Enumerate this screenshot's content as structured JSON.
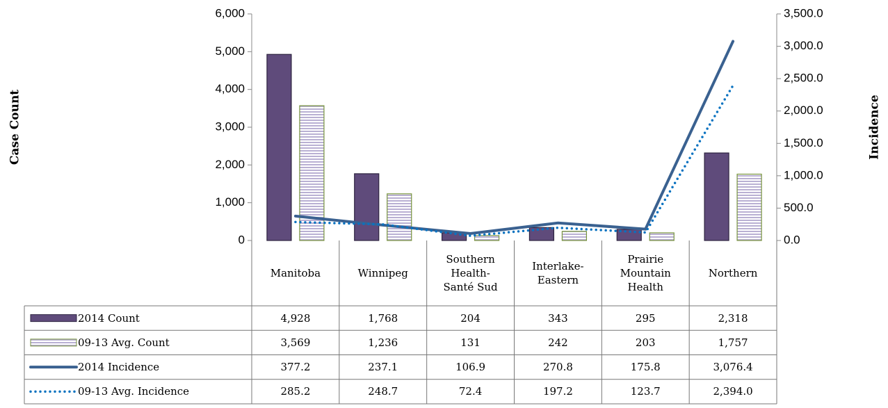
{
  "chart_data": {
    "type": "bar",
    "ylabel": "Case Count",
    "y2label": "Incidence",
    "categories": [
      "Manitoba",
      "Winnipeg",
      "Southern Health-Santé Sud",
      "Interlake-Eastern",
      "Prairie Mountain Health",
      "Northern"
    ],
    "ylim": [
      0,
      6000
    ],
    "yticks": [
      0,
      {
        "value": 1000,
        "label": "1,000"
      },
      {
        "value": 2000,
        "label": "2,000"
      },
      {
        "value": 3000,
        "label": "3,000"
      },
      {
        "value": 4000,
        "label": "4,000"
      },
      {
        "value": 5000,
        "label": "5,000"
      },
      {
        "value": 6000,
        "label": "6,000"
      }
    ],
    "y2lim": [
      0,
      3500
    ],
    "y2ticks": [
      {
        "value": 0,
        "label": "0.0"
      },
      {
        "value": 500,
        "label": "500.0"
      },
      {
        "value": 1000,
        "label": "1,000.0"
      },
      {
        "value": 1500,
        "label": "1,500.0"
      },
      {
        "value": 2000,
        "label": "2,000.0"
      },
      {
        "value": 2500,
        "label": "2,500.0"
      },
      {
        "value": 3000,
        "label": "3,000.0"
      },
      {
        "value": 3500,
        "label": "3,500.0"
      }
    ],
    "series": [
      {
        "name": "2014 Count",
        "type": "bar",
        "color": "#5f4b7b",
        "values": [
          4928,
          1768,
          204,
          343,
          295,
          2318
        ],
        "value_labels": [
          "4,928",
          "1,768",
          "204",
          "343",
          "295",
          "2,318"
        ]
      },
      {
        "name": "09-13 Avg. Count",
        "type": "bar",
        "color": "#b9b0d3",
        "values": [
          3569,
          1236,
          131,
          242,
          203,
          1757
        ],
        "value_labels": [
          "3,569",
          "1,236",
          "131",
          "242",
          "203",
          "1,757"
        ]
      },
      {
        "name": "2014 Incidence",
        "type": "line",
        "axis": "y2",
        "color": "#3a6190",
        "values": [
          377.2,
          237.1,
          106.9,
          270.8,
          175.8,
          3076.4
        ],
        "value_labels": [
          "377.2",
          "237.1",
          "106.9",
          "270.8",
          "175.8",
          "3,076.4"
        ]
      },
      {
        "name": "09-13 Avg. Incidence",
        "type": "line",
        "axis": "y2",
        "color": "#0a72c0",
        "values": [
          285.2,
          248.7,
          72.4,
          197.2,
          123.7,
          2394.0
        ],
        "value_labels": [
          "285.2",
          "248.7",
          "72.4",
          "197.2",
          "123.7",
          "2,394.0"
        ]
      }
    ]
  }
}
